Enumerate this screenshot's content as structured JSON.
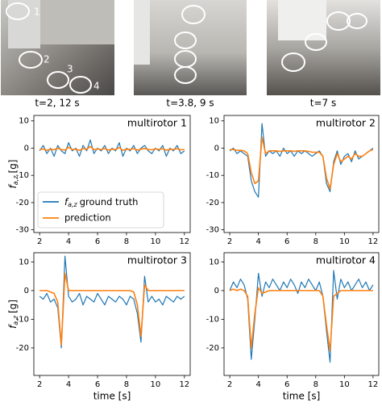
{
  "photos": [
    {
      "caption": "t=2, 12 s",
      "labels": [
        "1",
        "2",
        "3",
        "4"
      ]
    },
    {
      "caption": "t=3.8, 9 s"
    },
    {
      "caption": "t=7 s"
    }
  ],
  "chart_data": [
    {
      "type": "line",
      "title": "multirotor 1",
      "ylabel": {
        "symbol": "f",
        "subscript": "a,z",
        "unit": "[g]"
      },
      "legend": "lower left",
      "xlim": [
        1.6,
        12.4
      ],
      "xticks": [
        2,
        4,
        6,
        8,
        10,
        12
      ],
      "ylim": [
        -31,
        12
      ],
      "yticks": [
        10,
        0,
        -10,
        -20,
        -30
      ],
      "x": [
        2,
        2.25,
        2.5,
        2.75,
        3,
        3.25,
        3.5,
        3.75,
        4,
        4.25,
        4.5,
        4.75,
        5,
        5.25,
        5.5,
        5.75,
        6,
        6.25,
        6.5,
        6.75,
        7,
        7.25,
        7.5,
        7.75,
        8,
        8.25,
        8.5,
        8.75,
        9,
        9.25,
        9.5,
        9.75,
        10,
        10.25,
        10.5,
        10.75,
        11,
        11.25,
        11.5,
        11.75,
        12
      ],
      "series": [
        {
          "name": "ground truth",
          "name_symbol": "f",
          "name_subscript": "a,z",
          "color": "#1f77b4",
          "values": [
            -1,
            1,
            -2,
            0,
            -3,
            1,
            -1,
            -2,
            2,
            -1,
            0,
            -3,
            1,
            -1,
            3,
            -2,
            0,
            -1,
            1,
            -2,
            0,
            -1,
            2,
            -3,
            0,
            -1,
            1,
            -2,
            0,
            1,
            -1,
            -2,
            0,
            -1,
            1,
            -3,
            0,
            -1,
            1,
            -2,
            -1
          ]
        },
        {
          "name": "prediction",
          "color": "#ff7f0e",
          "values": [
            -0.5,
            -0.3,
            -0.8,
            -0.4,
            -0.6,
            0,
            -0.5,
            -0.7,
            0.3,
            -0.5,
            -0.4,
            -0.8,
            -0.2,
            -0.4,
            0.6,
            -0.6,
            -0.3,
            -0.5,
            -0.2,
            -0.7,
            -0.4,
            -0.5,
            0.2,
            -0.8,
            -0.4,
            -0.5,
            -0.2,
            -0.7,
            -0.4,
            -0.1,
            -0.5,
            -0.6,
            -0.3,
            -0.5,
            -0.2,
            -0.8,
            -0.4,
            -0.5,
            -0.2,
            -0.6,
            -0.5
          ]
        }
      ]
    },
    {
      "type": "line",
      "title": "multirotor 2",
      "xlim": [
        1.6,
        12.4
      ],
      "xticks": [
        2,
        4,
        6,
        8,
        10,
        12
      ],
      "ylim": [
        -31,
        12
      ],
      "yticks": [
        10,
        0,
        -10,
        -20,
        -30
      ],
      "x": [
        2,
        2.25,
        2.5,
        2.75,
        3,
        3.25,
        3.5,
        3.75,
        4,
        4.25,
        4.5,
        4.75,
        5,
        5.25,
        5.5,
        5.75,
        6,
        6.25,
        6.5,
        6.75,
        7,
        7.25,
        7.5,
        7.75,
        8,
        8.25,
        8.5,
        8.75,
        9,
        9.25,
        9.5,
        9.75,
        10,
        10.25,
        10.5,
        10.75,
        11,
        11.25,
        11.5,
        11.75,
        12
      ],
      "series": [
        {
          "color": "#1f77b4",
          "values": [
            -1,
            0,
            -2,
            -1,
            -2,
            -3,
            -12,
            -16,
            -18,
            9,
            -3,
            -1,
            -2,
            -1,
            -3,
            0,
            -2,
            -1,
            -3,
            -1,
            -2,
            -1,
            -2,
            -3,
            -2,
            -1,
            -3,
            -13,
            -16,
            -5,
            -1,
            -6,
            -3,
            -2,
            -5,
            -1,
            -4,
            -3,
            -2,
            -1,
            0
          ]
        },
        {
          "color": "#ff7f0e",
          "values": [
            -0.5,
            -0.5,
            -0.8,
            -0.8,
            -1,
            -2,
            -9,
            -13,
            -12,
            4,
            -2,
            -1,
            -1,
            -1,
            -1.2,
            -1,
            -1,
            -1,
            -1.2,
            -1,
            -1,
            -1,
            -1.2,
            -1.5,
            -1.5,
            -1.5,
            -3,
            -11,
            -15,
            -6,
            -2,
            -5,
            -4,
            -3,
            -4,
            -2,
            -3,
            -3,
            -2,
            -1,
            -0.5
          ]
        }
      ]
    },
    {
      "type": "line",
      "title": "multirotor 3",
      "ylabel": {
        "symbol": "f",
        "subscript": "a,z",
        "unit": "[g]"
      },
      "xlabel": "time [s]",
      "xlim": [
        1.6,
        12.4
      ],
      "xticks": [
        2,
        4,
        6,
        8,
        10,
        12
      ],
      "ylim": [
        -29.6,
        13.2
      ],
      "yticks": [
        10,
        0,
        -10,
        -20
      ],
      "x": [
        2,
        2.25,
        2.5,
        2.75,
        3,
        3.25,
        3.5,
        3.75,
        4,
        4.25,
        4.5,
        4.75,
        5,
        5.25,
        5.5,
        5.75,
        6,
        6.25,
        6.5,
        6.75,
        7,
        7.25,
        7.5,
        7.75,
        8,
        8.25,
        8.5,
        8.75,
        9,
        9.25,
        9.5,
        9.75,
        10,
        10.25,
        10.5,
        10.75,
        11,
        11.25,
        11.5,
        11.75,
        12
      ],
      "series": [
        {
          "color": "#1f77b4",
          "values": [
            -2,
            -3,
            -1,
            -4,
            -3,
            -6,
            -20,
            12,
            -2,
            -4,
            -3,
            -1,
            -5,
            -2,
            -3,
            -4,
            -1,
            -3,
            -5,
            -2,
            -3,
            -4,
            -2,
            -3,
            -5,
            -2,
            -3,
            -8,
            -18,
            5,
            -4,
            -2,
            -4,
            -3,
            -5,
            -2,
            -3,
            -4,
            -2,
            -3,
            -2
          ]
        },
        {
          "color": "#ff7f0e",
          "values": [
            0,
            0,
            0,
            -0.5,
            -1,
            -4,
            -19,
            6,
            0,
            0,
            0,
            0,
            0,
            0,
            0,
            0,
            0,
            0,
            0,
            0,
            0,
            0,
            0,
            0,
            0,
            0,
            -0.5,
            -5,
            -16,
            2,
            0,
            0,
            0,
            0,
            0,
            0,
            0,
            0,
            0,
            0,
            0
          ]
        }
      ]
    },
    {
      "type": "line",
      "title": "multirotor 4",
      "xlabel": "time [s]",
      "xlim": [
        1.6,
        12.4
      ],
      "xticks": [
        2,
        4,
        6,
        8,
        10,
        12
      ],
      "ylim": [
        -29.6,
        13.2
      ],
      "yticks": [
        10,
        0,
        -10,
        -20
      ],
      "x": [
        2,
        2.25,
        2.5,
        2.75,
        3,
        3.25,
        3.5,
        3.75,
        4,
        4.25,
        4.5,
        4.75,
        5,
        5.25,
        5.5,
        5.75,
        6,
        6.25,
        6.5,
        6.75,
        7,
        7.25,
        7.5,
        7.75,
        8,
        8.25,
        8.5,
        8.75,
        9,
        9.25,
        9.5,
        9.75,
        10,
        10.25,
        10.5,
        10.75,
        11,
        11.25,
        11.5,
        11.75,
        12
      ],
      "series": [
        {
          "color": "#1f77b4",
          "values": [
            0,
            3,
            1,
            4,
            2,
            -3,
            -24,
            -10,
            6,
            -2,
            3,
            1,
            4,
            2,
            0,
            3,
            1,
            4,
            2,
            -1,
            3,
            1,
            4,
            2,
            0,
            3,
            -2,
            -14,
            -25,
            7,
            -3,
            4,
            1,
            3,
            0,
            2,
            4,
            1,
            3,
            0,
            2
          ]
        },
        {
          "color": "#ff7f0e",
          "values": [
            0,
            0.5,
            0,
            0.5,
            0,
            -2,
            -20,
            -8,
            1,
            -1,
            -0.5,
            0,
            0,
            0,
            0,
            0,
            0,
            0,
            0,
            0,
            0,
            0,
            0,
            0,
            0,
            0,
            -2,
            -12,
            -21,
            -2,
            -1,
            0,
            0,
            0,
            0,
            0,
            0,
            0,
            0,
            0,
            0
          ]
        }
      ]
    }
  ]
}
